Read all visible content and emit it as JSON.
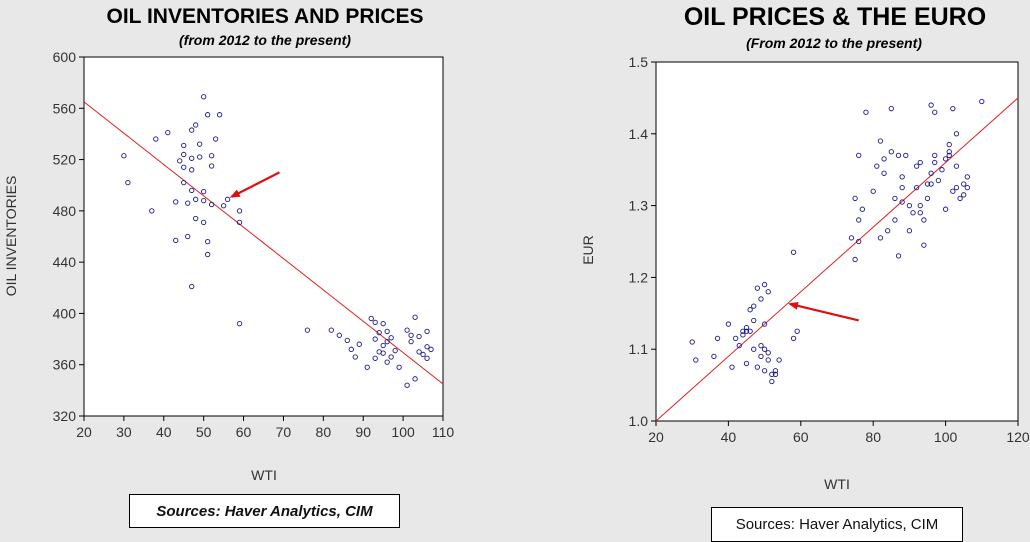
{
  "chart_data": [
    {
      "type": "scatter",
      "title": "OIL INVENTORIES AND PRICES",
      "subtitle": "(from 2012 to the present)",
      "xlabel": "WTI",
      "ylabel": "OIL INVENTORIES",
      "xlim": [
        20,
        110
      ],
      "ylim": [
        320,
        600
      ],
      "xticks": [
        20,
        30,
        40,
        50,
        60,
        70,
        80,
        90,
        100,
        110
      ],
      "yticks": [
        320,
        360,
        400,
        440,
        480,
        520,
        560,
        600
      ],
      "grid": false,
      "point_color": "#1a1a8c",
      "line_color": "#e02020",
      "trend_line": {
        "x": [
          20,
          110
        ],
        "y": [
          565,
          345
        ]
      },
      "arrow": {
        "from": [
          69,
          510
        ],
        "to": [
          57,
          491
        ],
        "color": "#dd1111"
      },
      "source": "Sources: Haver Analytics, CIM",
      "points": [
        [
          30,
          523
        ],
        [
          31,
          502
        ],
        [
          37,
          480
        ],
        [
          38,
          536
        ],
        [
          41,
          541
        ],
        [
          43,
          487
        ],
        [
          43,
          457
        ],
        [
          44,
          519
        ],
        [
          45,
          531
        ],
        [
          45,
          524
        ],
        [
          45,
          514
        ],
        [
          45,
          502
        ],
        [
          46,
          460
        ],
        [
          46,
          486
        ],
        [
          47,
          543
        ],
        [
          47,
          521
        ],
        [
          47,
          512
        ],
        [
          47,
          496
        ],
        [
          47,
          421
        ],
        [
          48,
          547
        ],
        [
          48,
          474
        ],
        [
          48,
          489
        ],
        [
          49,
          532
        ],
        [
          49,
          522
        ],
        [
          50,
          569
        ],
        [
          50,
          495
        ],
        [
          50,
          488
        ],
        [
          50,
          471
        ],
        [
          51,
          555
        ],
        [
          51,
          456
        ],
        [
          51,
          446
        ],
        [
          52,
          485
        ],
        [
          52,
          515
        ],
        [
          52,
          523
        ],
        [
          53,
          536
        ],
        [
          54,
          555
        ],
        [
          55,
          484
        ],
        [
          56,
          489
        ],
        [
          59,
          480
        ],
        [
          59,
          471
        ],
        [
          59,
          392
        ],
        [
          76,
          387
        ],
        [
          82,
          387
        ],
        [
          84,
          383
        ],
        [
          86,
          379
        ],
        [
          87,
          372
        ],
        [
          88,
          366
        ],
        [
          89,
          376
        ],
        [
          91,
          358
        ],
        [
          92,
          396
        ],
        [
          93,
          393
        ],
        [
          93,
          380
        ],
        [
          93,
          365
        ],
        [
          94,
          385
        ],
        [
          94,
          370
        ],
        [
          95,
          392
        ],
        [
          95,
          375
        ],
        [
          95,
          369
        ],
        [
          96,
          386
        ],
        [
          96,
          362
        ],
        [
          96,
          378
        ],
        [
          97,
          381
        ],
        [
          97,
          366
        ],
        [
          98,
          371
        ],
        [
          99,
          358
        ],
        [
          101,
          344
        ],
        [
          101,
          387
        ],
        [
          102,
          378
        ],
        [
          102,
          383
        ],
        [
          103,
          397
        ],
        [
          103,
          349
        ],
        [
          104,
          382
        ],
        [
          104,
          370
        ],
        [
          105,
          368
        ],
        [
          106,
          386
        ],
        [
          106,
          374
        ],
        [
          106,
          365
        ],
        [
          107,
          372
        ]
      ]
    },
    {
      "type": "scatter",
      "title": "OIL PRICES & THE EURO",
      "subtitle": "(From 2012 to the present)",
      "xlabel": "WTI",
      "ylabel": "EUR",
      "xlim": [
        20,
        120
      ],
      "ylim": [
        1.0,
        1.5
      ],
      "xticks": [
        20,
        40,
        60,
        80,
        100,
        120
      ],
      "yticks": [
        1.0,
        1.1,
        1.2,
        1.3,
        1.4,
        1.5
      ],
      "grid": false,
      "point_color": "#1a1a8c",
      "line_color": "#e02020",
      "trend_line": {
        "x": [
          20,
          120
        ],
        "y": [
          1.0,
          1.45
        ]
      },
      "arrow": {
        "from": [
          76,
          1.14
        ],
        "to": [
          57,
          1.163
        ],
        "color": "#dd1111"
      },
      "source": "Sources: Haver Analytics, CIM",
      "points": [
        [
          30,
          1.11
        ],
        [
          31,
          1.085
        ],
        [
          36,
          1.09
        ],
        [
          37,
          1.115
        ],
        [
          40,
          1.135
        ],
        [
          41,
          1.075
        ],
        [
          42,
          1.115
        ],
        [
          43,
          1.105
        ],
        [
          44,
          1.125
        ],
        [
          44,
          1.12
        ],
        [
          45,
          1.13
        ],
        [
          45,
          1.125
        ],
        [
          45,
          1.08
        ],
        [
          46,
          1.155
        ],
        [
          46,
          1.125
        ],
        [
          47,
          1.16
        ],
        [
          47,
          1.14
        ],
        [
          47,
          1.1
        ],
        [
          48,
          1.185
        ],
        [
          48,
          1.075
        ],
        [
          49,
          1.17
        ],
        [
          49,
          1.105
        ],
        [
          49,
          1.09
        ],
        [
          50,
          1.19
        ],
        [
          50,
          1.135
        ],
        [
          50,
          1.1
        ],
        [
          50,
          1.07
        ],
        [
          51,
          1.18
        ],
        [
          51,
          1.095
        ],
        [
          51,
          1.085
        ],
        [
          52,
          1.065
        ],
        [
          52,
          1.055
        ],
        [
          53,
          1.065
        ],
        [
          53,
          1.07
        ],
        [
          54,
          1.085
        ],
        [
          58,
          1.235
        ],
        [
          58,
          1.115
        ],
        [
          59,
          1.125
        ],
        [
          74,
          1.255
        ],
        [
          75,
          1.225
        ],
        [
          75,
          1.31
        ],
        [
          76,
          1.37
        ],
        [
          76,
          1.28
        ],
        [
          76,
          1.25
        ],
        [
          77,
          1.295
        ],
        [
          78,
          1.43
        ],
        [
          80,
          1.32
        ],
        [
          81,
          1.355
        ],
        [
          82,
          1.39
        ],
        [
          82,
          1.255
        ],
        [
          83,
          1.365
        ],
        [
          83,
          1.345
        ],
        [
          84,
          1.265
        ],
        [
          85,
          1.375
        ],
        [
          85,
          1.435
        ],
        [
          86,
          1.31
        ],
        [
          86,
          1.28
        ],
        [
          87,
          1.23
        ],
        [
          87,
          1.37
        ],
        [
          88,
          1.325
        ],
        [
          88,
          1.305
        ],
        [
          88,
          1.34
        ],
        [
          89,
          1.37
        ],
        [
          90,
          1.3
        ],
        [
          90,
          1.265
        ],
        [
          91,
          1.29
        ],
        [
          92,
          1.355
        ],
        [
          92,
          1.325
        ],
        [
          93,
          1.36
        ],
        [
          93,
          1.29
        ],
        [
          93,
          1.3
        ],
        [
          94,
          1.245
        ],
        [
          94,
          1.28
        ],
        [
          95,
          1.33
        ],
        [
          95,
          1.31
        ],
        [
          96,
          1.44
        ],
        [
          96,
          1.345
        ],
        [
          96,
          1.33
        ],
        [
          97,
          1.43
        ],
        [
          97,
          1.37
        ],
        [
          97,
          1.36
        ],
        [
          98,
          1.335
        ],
        [
          99,
          1.35
        ],
        [
          100,
          1.365
        ],
        [
          100,
          1.295
        ],
        [
          101,
          1.385
        ],
        [
          101,
          1.375
        ],
        [
          101,
          1.37
        ],
        [
          102,
          1.435
        ],
        [
          102,
          1.32
        ],
        [
          103,
          1.4
        ],
        [
          103,
          1.355
        ],
        [
          103,
          1.325
        ],
        [
          104,
          1.31
        ],
        [
          105,
          1.33
        ],
        [
          105,
          1.315
        ],
        [
          106,
          1.34
        ],
        [
          106,
          1.325
        ],
        [
          110,
          1.445
        ]
      ]
    }
  ]
}
